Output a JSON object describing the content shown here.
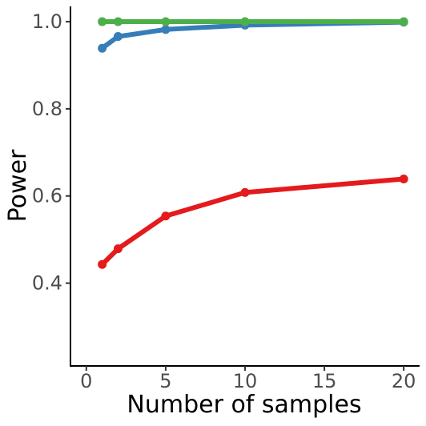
{
  "chart_data": {
    "type": "line",
    "title": "",
    "xlabel": "Number of samples",
    "ylabel": "Power",
    "xlim": [
      -1,
      21
    ],
    "ylim": [
      0.21,
      1.035
    ],
    "x_ticks": [
      0,
      5,
      10,
      15,
      20
    ],
    "x_tick_labels": [
      "0",
      "5",
      "10",
      "15",
      "20"
    ],
    "y_ticks": [
      0.4,
      0.6,
      0.8,
      1.0
    ],
    "y_tick_labels": [
      "0.4",
      "0.6",
      "0.8",
      "1.0"
    ],
    "grid": false,
    "legend": "none",
    "x": [
      1,
      2,
      5,
      10,
      20
    ],
    "series": [
      {
        "color": "#e41a1c",
        "values": [
          0.443,
          0.479,
          0.554,
          0.608,
          0.639
        ]
      },
      {
        "color": "#377eb8",
        "values": [
          0.939,
          0.966,
          0.982,
          0.992,
          0.999
        ]
      },
      {
        "color": "#4daf4a",
        "values": [
          1.0,
          1.0,
          1.0,
          1.0,
          1.0
        ]
      }
    ]
  }
}
